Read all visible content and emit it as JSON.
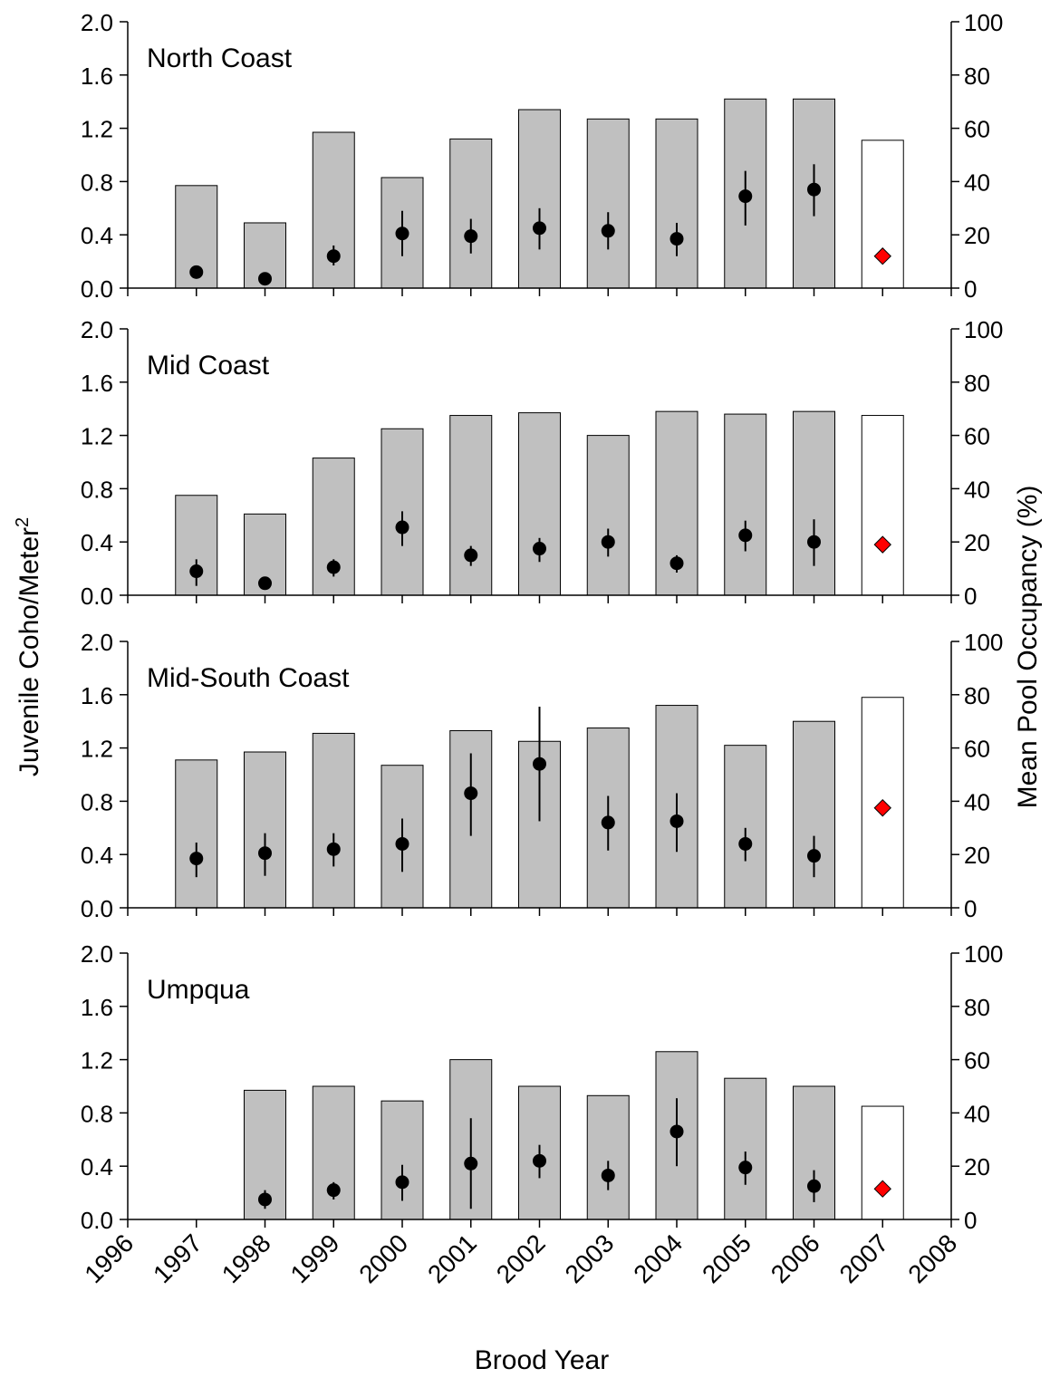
{
  "y_axis_label_left": "Juvenile Coho/Meter",
  "y_axis_label_left_sup": "2",
  "y_axis_label_right": "Mean Pool Occupancy (%)",
  "x_axis_label": "Brood Year",
  "x_ticks": [
    "1996",
    "1997",
    "1998",
    "1999",
    "2000",
    "2001",
    "2002",
    "2003",
    "2004",
    "2005",
    "2006",
    "2007",
    "2008"
  ],
  "left_ticks": [
    "0.0",
    "0.4",
    "0.8",
    "1.2",
    "1.6",
    "2.0"
  ],
  "right_ticks": [
    "0",
    "20",
    "40",
    "60",
    "80",
    "100"
  ],
  "colors": {
    "bar": "#c0c0c0",
    "bar_last": "#ffffff",
    "dot": "#000000",
    "last_marker": "#ff0000"
  },
  "chart_data": [
    {
      "type": "bar",
      "title": "North Coast",
      "x": [
        1997,
        1998,
        1999,
        2000,
        2001,
        2002,
        2003,
        2004,
        2005,
        2006,
        2007
      ],
      "series": [
        {
          "name": "",
          "axis": "right",
          "values": [
            38.5,
            24.5,
            58.5,
            41.5,
            56,
            67,
            63.5,
            63.5,
            71,
            71,
            55.5
          ]
        },
        {
          "name": "",
          "axis": "left",
          "values": [
            0.12,
            0.07,
            0.24,
            0.41,
            0.39,
            0.45,
            0.43,
            0.37,
            0.69,
            0.74,
            0.24
          ],
          "err_low": [
            0.08,
            0.05,
            0.17,
            0.24,
            0.26,
            0.29,
            0.29,
            0.24,
            0.47,
            0.54,
            null
          ],
          "err_high": [
            0.16,
            0.09,
            0.32,
            0.58,
            0.52,
            0.6,
            0.57,
            0.49,
            0.88,
            0.93,
            null
          ]
        }
      ],
      "ylim_left": [
        0,
        2.0
      ],
      "ylim_right": [
        0,
        100
      ],
      "xlim": [
        1996,
        2008
      ]
    },
    {
      "type": "bar",
      "title": "Mid Coast",
      "x": [
        1997,
        1998,
        1999,
        2000,
        2001,
        2002,
        2003,
        2004,
        2005,
        2006,
        2007
      ],
      "series": [
        {
          "name": "",
          "axis": "right",
          "values": [
            37.5,
            30.5,
            51.5,
            62.5,
            67.5,
            68.5,
            60,
            69,
            68,
            69,
            67.5
          ]
        },
        {
          "name": "",
          "axis": "left",
          "values": [
            0.18,
            0.09,
            0.21,
            0.51,
            0.3,
            0.35,
            0.4,
            0.24,
            0.45,
            0.4,
            0.38
          ],
          "err_low": [
            0.07,
            0.07,
            0.14,
            0.37,
            0.22,
            0.25,
            0.29,
            0.17,
            0.33,
            0.22,
            null
          ],
          "err_high": [
            0.27,
            0.11,
            0.27,
            0.63,
            0.37,
            0.43,
            0.5,
            0.3,
            0.56,
            0.57,
            null
          ]
        }
      ],
      "ylim_left": [
        0,
        2.0
      ],
      "ylim_right": [
        0,
        100
      ],
      "xlim": [
        1996,
        2008
      ]
    },
    {
      "type": "bar",
      "title": "Mid-South Coast",
      "x": [
        1997,
        1998,
        1999,
        2000,
        2001,
        2002,
        2003,
        2004,
        2005,
        2006,
        2007
      ],
      "series": [
        {
          "name": "",
          "axis": "right",
          "values": [
            55.5,
            58.5,
            65.5,
            53.5,
            66.5,
            62.5,
            67.5,
            76,
            61,
            70,
            79
          ]
        },
        {
          "name": "",
          "axis": "left",
          "values": [
            0.37,
            0.41,
            0.44,
            0.48,
            0.86,
            1.08,
            0.64,
            0.65,
            0.48,
            0.39,
            0.75
          ],
          "err_low": [
            0.23,
            0.24,
            0.31,
            0.27,
            0.54,
            0.65,
            0.43,
            0.42,
            0.35,
            0.23,
            null
          ],
          "err_high": [
            0.49,
            0.56,
            0.56,
            0.67,
            1.16,
            1.51,
            0.84,
            0.86,
            0.6,
            0.54,
            null
          ]
        }
      ],
      "ylim_left": [
        0,
        2.0
      ],
      "ylim_right": [
        0,
        100
      ],
      "xlim": [
        1996,
        2008
      ]
    },
    {
      "type": "bar",
      "title": "Umpqua",
      "x": [
        1998,
        1999,
        2000,
        2001,
        2002,
        2003,
        2004,
        2005,
        2006,
        2007
      ],
      "series": [
        {
          "name": "",
          "axis": "right",
          "values": [
            48.5,
            50,
            44.5,
            60,
            50,
            46.5,
            63,
            53,
            50,
            42.5
          ]
        },
        {
          "name": "",
          "axis": "left",
          "values": [
            0.15,
            0.22,
            0.28,
            0.42,
            0.44,
            0.33,
            0.66,
            0.39,
            0.25,
            0.23
          ],
          "err_low": [
            0.08,
            0.15,
            0.14,
            0.08,
            0.31,
            0.22,
            0.4,
            0.26,
            0.13,
            null
          ],
          "err_high": [
            0.22,
            0.28,
            0.41,
            0.76,
            0.56,
            0.44,
            0.91,
            0.51,
            0.37,
            null
          ]
        }
      ],
      "ylim_left": [
        0,
        2.0
      ],
      "ylim_right": [
        0,
        100
      ],
      "xlim": [
        1996,
        2008
      ]
    }
  ]
}
